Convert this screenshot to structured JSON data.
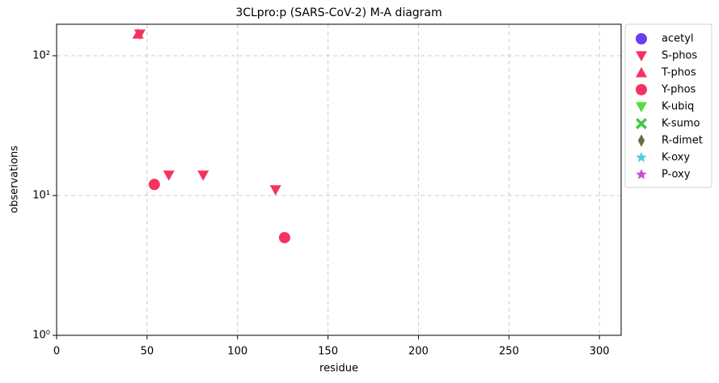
{
  "chart_data": {
    "type": "scatter",
    "title": "3CLpro:p (SARS-CoV-2) M-A diagram",
    "x_label": "residue",
    "y_label": "observations",
    "xlim": [
      0,
      312
    ],
    "xticks": [
      0,
      50,
      100,
      150,
      200,
      250,
      300
    ],
    "ylim": [
      1,
      168
    ],
    "y_scale": "log",
    "yticks": [
      {
        "value": 1,
        "label": "10⁰"
      },
      {
        "value": 10,
        "label": "10¹"
      },
      {
        "value": 100,
        "label": "10²"
      }
    ],
    "grid": true,
    "legend": "outside-upper-right",
    "series": [
      {
        "name": "acetyl",
        "color": "#6a3df0",
        "marker": "circle",
        "x": [],
        "y": []
      },
      {
        "name": "S-phos",
        "color": "#f5325f",
        "marker": "triangle-down",
        "x": [
          46,
          62,
          81,
          121
        ],
        "y": [
          143,
          14,
          14,
          11
        ]
      },
      {
        "name": "T-phos",
        "color": "#f5325f",
        "marker": "triangle-up",
        "x": [
          45
        ],
        "y": [
          143
        ]
      },
      {
        "name": "Y-phos",
        "color": "#f5325f",
        "marker": "circle",
        "x": [
          54,
          126
        ],
        "y": [
          12,
          5
        ]
      },
      {
        "name": "K-ubiq",
        "color": "#4fe03c",
        "marker": "triangle-down",
        "x": [],
        "y": []
      },
      {
        "name": "K-sumo",
        "color": "#3ec93e",
        "marker": "x",
        "x": [],
        "y": []
      },
      {
        "name": "R-dimet",
        "color": "#6b6b45",
        "marker": "thin-diamond",
        "x": [],
        "y": []
      },
      {
        "name": "K-oxy",
        "color": "#4bd0d8",
        "marker": "star",
        "x": [],
        "y": []
      },
      {
        "name": "P-oxy",
        "color": "#c94bd0",
        "marker": "star",
        "x": [],
        "y": []
      }
    ]
  }
}
